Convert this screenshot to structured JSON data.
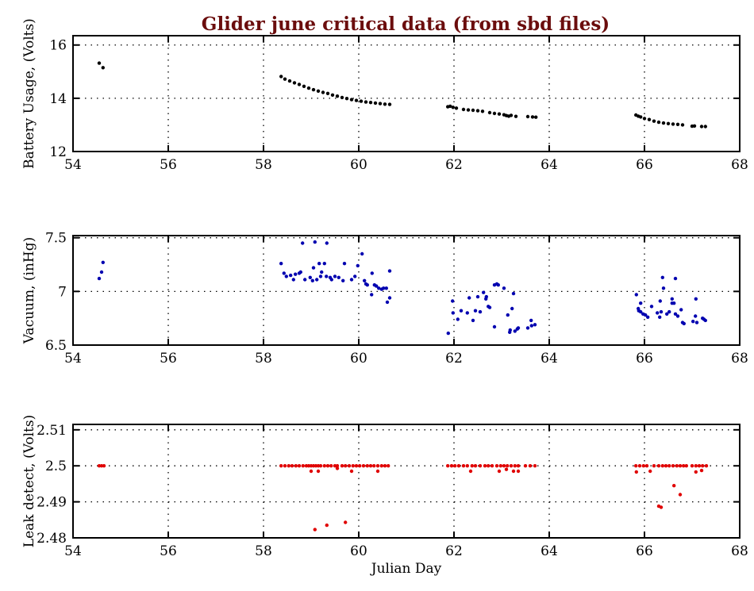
{
  "chart_data": {
    "title": "Glider june critical data (from sbd files)",
    "title_color": "#6b0d0d",
    "panels": [
      {
        "type": "scatter",
        "ylabel": "Battery Usage, (Volts)",
        "xlabel": "",
        "xlim": [
          54,
          68
        ],
        "ylim": [
          12,
          16.35
        ],
        "xticks": [
          54,
          56,
          58,
          60,
          62,
          64,
          66,
          68
        ],
        "yticks": [
          12,
          14,
          16
        ],
        "ytick_labels": [
          "12",
          "14",
          "16"
        ],
        "grid": "dotted",
        "color": "#000000",
        "x": [
          54.55,
          54.63,
          58.37,
          58.45,
          58.55,
          58.65,
          58.75,
          58.85,
          58.95,
          59.05,
          59.15,
          59.25,
          59.35,
          59.45,
          59.55,
          59.65,
          59.75,
          59.85,
          59.95,
          60.05,
          60.15,
          60.25,
          60.35,
          60.45,
          60.55,
          60.65,
          61.87,
          61.92,
          61.98,
          62.05,
          62.2,
          62.3,
          62.4,
          62.5,
          62.6,
          62.75,
          62.85,
          62.95,
          63.05,
          63.1,
          63.15,
          63.2,
          63.3,
          63.55,
          63.65,
          63.72,
          65.82,
          65.87,
          65.92,
          66.0,
          66.1,
          66.2,
          66.3,
          66.4,
          66.5,
          66.6,
          66.7,
          66.8,
          67.0,
          67.05,
          67.2,
          67.28
        ],
        "y": [
          15.32,
          15.15,
          14.82,
          14.72,
          14.65,
          14.58,
          14.52,
          14.45,
          14.38,
          14.32,
          14.27,
          14.22,
          14.18,
          14.12,
          14.08,
          14.03,
          13.99,
          13.95,
          13.92,
          13.89,
          13.86,
          13.84,
          13.82,
          13.8,
          13.78,
          13.77,
          13.68,
          13.7,
          13.66,
          13.63,
          13.58,
          13.56,
          13.55,
          13.53,
          13.51,
          13.46,
          13.43,
          13.41,
          13.38,
          13.35,
          13.33,
          13.36,
          13.32,
          13.31,
          13.3,
          13.29,
          13.37,
          13.33,
          13.3,
          13.24,
          13.2,
          13.14,
          13.1,
          13.07,
          13.05,
          13.03,
          13.02,
          13.0,
          12.95,
          12.96,
          12.94,
          12.94
        ]
      },
      {
        "type": "scatter",
        "ylabel": "Vacuum, (inHg)",
        "xlabel": "",
        "xlim": [
          54,
          68
        ],
        "ylim": [
          6.5,
          7.52
        ],
        "xticks": [
          54,
          56,
          58,
          60,
          62,
          64,
          66,
          68
        ],
        "yticks": [
          6.5,
          7,
          7.5
        ],
        "ytick_labels": [
          "6.5",
          "7",
          "7.5"
        ],
        "grid": "dotted",
        "color": "#0000b0",
        "x": [
          54.55,
          54.6,
          54.63,
          58.37,
          58.43,
          58.48,
          58.57,
          58.63,
          58.67,
          58.75,
          58.78,
          58.82,
          58.87,
          58.98,
          59.03,
          59.05,
          59.08,
          59.12,
          59.17,
          59.2,
          59.22,
          59.28,
          59.32,
          59.33,
          59.4,
          59.43,
          59.5,
          59.58,
          59.67,
          59.7,
          59.85,
          59.92,
          59.98,
          60.07,
          60.12,
          60.15,
          60.18,
          60.27,
          60.28,
          60.33,
          60.37,
          60.42,
          60.48,
          60.52,
          60.58,
          60.6,
          60.65,
          60.65,
          61.88,
          61.97,
          61.98,
          62.08,
          62.15,
          62.28,
          62.32,
          62.4,
          62.45,
          62.5,
          62.55,
          62.62,
          62.67,
          62.68,
          62.72,
          62.75,
          62.85,
          62.9,
          62.93,
          62.85,
          63.05,
          63.13,
          63.22,
          63.25,
          63.17,
          63.18,
          63.28,
          63.33,
          63.35,
          63.55,
          63.62,
          63.63,
          63.7,
          65.83,
          65.92,
          65.87,
          65.88,
          65.92,
          65.97,
          66.02,
          66.07,
          66.15,
          66.27,
          66.32,
          66.33,
          66.35,
          66.38,
          66.4,
          66.47,
          66.52,
          66.58,
          66.58,
          66.62,
          66.65,
          66.65,
          66.7,
          66.77,
          66.8,
          66.83,
          67.02,
          67.07,
          67.08,
          67.1,
          67.22,
          67.25,
          67.28
        ],
        "y": [
          7.12,
          7.18,
          7.27,
          7.26,
          7.17,
          7.14,
          7.15,
          7.11,
          7.16,
          7.17,
          7.18,
          7.45,
          7.11,
          7.13,
          7.1,
          7.22,
          7.46,
          7.11,
          7.26,
          7.14,
          7.18,
          7.26,
          7.14,
          7.45,
          7.13,
          7.11,
          7.14,
          7.13,
          7.1,
          7.26,
          7.11,
          7.14,
          7.24,
          7.35,
          7.1,
          7.07,
          7.06,
          6.97,
          7.17,
          7.06,
          7.05,
          7.03,
          7.02,
          7.03,
          7.03,
          6.9,
          6.94,
          7.19,
          6.61,
          6.91,
          6.8,
          6.74,
          6.82,
          6.8,
          6.94,
          6.73,
          6.82,
          6.95,
          6.81,
          6.99,
          6.93,
          6.95,
          6.86,
          6.85,
          7.06,
          7.07,
          7.06,
          6.67,
          7.03,
          6.78,
          6.84,
          6.98,
          6.62,
          6.64,
          6.63,
          6.65,
          6.66,
          6.66,
          6.73,
          6.68,
          6.69,
          6.97,
          6.89,
          6.84,
          6.82,
          6.81,
          6.79,
          6.78,
          6.76,
          6.86,
          6.8,
          6.76,
          6.91,
          6.81,
          7.13,
          7.03,
          6.79,
          6.81,
          6.93,
          6.89,
          6.89,
          7.12,
          6.79,
          6.77,
          6.83,
          6.71,
          6.7,
          6.72,
          6.77,
          6.93,
          6.71,
          6.75,
          6.74,
          6.73
        ]
      },
      {
        "type": "scatter",
        "ylabel": "Leak detect, (Volts)",
        "xlabel": "Julian Day",
        "xlim": [
          54,
          68
        ],
        "ylim": [
          2.48,
          2.5115
        ],
        "xticks": [
          54,
          56,
          58,
          60,
          62,
          64,
          66,
          68
        ],
        "yticks": [
          2.48,
          2.49,
          2.5,
          2.51
        ],
        "ytick_labels": [
          "2.48",
          "2.49",
          "2.5",
          "2.51"
        ],
        "grid": "dotted",
        "color": "#e00000",
        "x": [
          54.55,
          54.6,
          54.65,
          58.37,
          58.45,
          58.53,
          58.6,
          58.68,
          58.75,
          58.83,
          58.9,
          58.95,
          59.0,
          59.05,
          59.1,
          59.15,
          59.2,
          59.28,
          59.35,
          59.42,
          59.5,
          59.55,
          59.65,
          59.72,
          59.8,
          59.88,
          59.95,
          60.02,
          60.1,
          60.18,
          60.25,
          60.32,
          60.4,
          60.48,
          60.55,
          60.62,
          59.08,
          59.33,
          59.72,
          59.0,
          59.15,
          59.55,
          59.85,
          60.4,
          61.87,
          61.95,
          62.02,
          62.1,
          62.2,
          62.28,
          62.38,
          62.45,
          62.55,
          62.65,
          62.72,
          62.8,
          62.9,
          62.98,
          63.05,
          63.12,
          63.2,
          63.28,
          63.35,
          63.5,
          63.6,
          63.7,
          62.35,
          62.95,
          63.1,
          63.25,
          63.35,
          65.82,
          65.9,
          65.98,
          66.05,
          66.2,
          66.3,
          66.38,
          66.45,
          66.52,
          66.6,
          66.68,
          66.75,
          66.82,
          66.88,
          67.0,
          67.08,
          67.15,
          67.22,
          67.3,
          65.83,
          66.12,
          67.08,
          67.2,
          66.3,
          66.35,
          66.62,
          66.75
        ],
        "y": [
          2.5,
          2.5,
          2.5,
          2.5,
          2.5,
          2.5,
          2.5,
          2.5,
          2.5,
          2.5,
          2.5,
          2.5,
          2.5,
          2.5,
          2.5,
          2.5,
          2.5,
          2.5,
          2.5,
          2.5,
          2.5,
          2.5,
          2.5,
          2.5,
          2.5,
          2.5,
          2.5,
          2.5,
          2.5,
          2.5,
          2.5,
          2.5,
          2.5,
          2.5,
          2.5,
          2.5,
          2.4823,
          2.4835,
          2.4843,
          2.4985,
          2.4985,
          2.4993,
          2.4985,
          2.4985,
          2.5,
          2.5,
          2.5,
          2.5,
          2.5,
          2.5,
          2.5,
          2.5,
          2.5,
          2.5,
          2.5,
          2.5,
          2.5,
          2.5,
          2.5,
          2.5,
          2.5,
          2.5,
          2.5,
          2.5,
          2.5,
          2.5,
          2.4985,
          2.4985,
          2.499,
          2.4985,
          2.4985,
          2.5,
          2.5,
          2.5,
          2.5,
          2.5,
          2.5,
          2.5,
          2.5,
          2.5,
          2.5,
          2.5,
          2.5,
          2.5,
          2.5,
          2.5,
          2.5,
          2.5,
          2.5,
          2.5,
          2.4983,
          2.4985,
          2.4983,
          2.4987,
          2.4888,
          2.4885,
          2.4945,
          2.492
        ]
      }
    ]
  }
}
